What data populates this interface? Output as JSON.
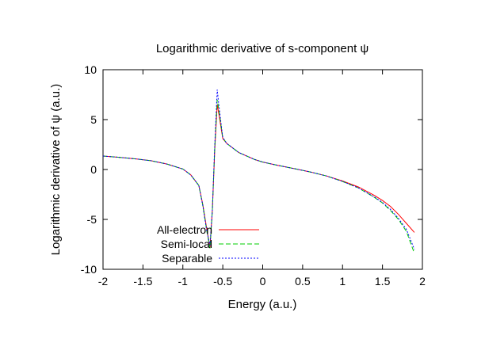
{
  "chart_data": {
    "type": "line",
    "title": "Logarithmic derivative of s-component ψ",
    "xlabel": "Energy (a.u.)",
    "ylabel": "Logarithmic derivative of ψ (a.u.)",
    "xlim": [
      -2,
      2
    ],
    "ylim": [
      -10,
      10
    ],
    "xticks": [
      -2,
      -1.5,
      -1,
      -0.5,
      0,
      0.5,
      1,
      1.5,
      2
    ],
    "yticks": [
      -10,
      -5,
      0,
      5,
      10
    ],
    "xtick_labels": [
      "-2",
      "-1.5",
      "-1",
      "-0.5",
      "0",
      "0.5",
      "1",
      "1.5",
      "2"
    ],
    "ytick_labels": [
      "-10",
      "-5",
      "0",
      "5",
      "10"
    ],
    "grid": false,
    "legend_position": "bottom-left",
    "series": [
      {
        "name": "All-electron",
        "color": "#ff0000",
        "dash": "solid",
        "points": [
          [
            -2.0,
            1.35
          ],
          [
            -1.8,
            1.22
          ],
          [
            -1.6,
            1.07
          ],
          [
            -1.4,
            0.88
          ],
          [
            -1.2,
            0.55
          ],
          [
            -1.0,
            0.05
          ],
          [
            -0.9,
            -0.55
          ],
          [
            -0.8,
            -1.6
          ],
          [
            -0.75,
            -3.5
          ],
          [
            -0.7,
            -6.0
          ],
          [
            -0.66,
            -7.8
          ],
          [
            -0.63,
            -4.0
          ],
          [
            -0.6,
            2.0
          ],
          [
            -0.57,
            6.5
          ],
          [
            -0.55,
            5.6
          ],
          [
            -0.5,
            3.1
          ],
          [
            -0.45,
            2.6
          ],
          [
            -0.3,
            1.7
          ],
          [
            -0.1,
            1.0
          ],
          [
            0.0,
            0.75
          ],
          [
            0.2,
            0.4
          ],
          [
            0.4,
            0.08
          ],
          [
            0.6,
            -0.25
          ],
          [
            0.8,
            -0.65
          ],
          [
            1.0,
            -1.15
          ],
          [
            1.2,
            -1.75
          ],
          [
            1.4,
            -2.6
          ],
          [
            1.5,
            -3.1
          ],
          [
            1.6,
            -3.7
          ],
          [
            1.7,
            -4.5
          ],
          [
            1.8,
            -5.4
          ],
          [
            1.9,
            -6.3
          ]
        ]
      },
      {
        "name": "Semi-local",
        "color": "#00cc00",
        "dash": "6 3",
        "points": [
          [
            -2.0,
            1.35
          ],
          [
            -1.8,
            1.22
          ],
          [
            -1.6,
            1.07
          ],
          [
            -1.4,
            0.88
          ],
          [
            -1.2,
            0.55
          ],
          [
            -1.0,
            0.05
          ],
          [
            -0.9,
            -0.55
          ],
          [
            -0.8,
            -1.6
          ],
          [
            -0.75,
            -3.6
          ],
          [
            -0.7,
            -6.2
          ],
          [
            -0.66,
            -7.9
          ],
          [
            -0.63,
            -4.0
          ],
          [
            -0.6,
            2.2
          ],
          [
            -0.57,
            7.0
          ],
          [
            -0.55,
            6.0
          ],
          [
            -0.5,
            3.2
          ],
          [
            -0.45,
            2.6
          ],
          [
            -0.3,
            1.7
          ],
          [
            -0.1,
            1.0
          ],
          [
            0.0,
            0.75
          ],
          [
            0.2,
            0.4
          ],
          [
            0.4,
            0.08
          ],
          [
            0.6,
            -0.25
          ],
          [
            0.8,
            -0.65
          ],
          [
            1.0,
            -1.2
          ],
          [
            1.2,
            -1.85
          ],
          [
            1.4,
            -2.8
          ],
          [
            1.5,
            -3.35
          ],
          [
            1.6,
            -4.1
          ],
          [
            1.7,
            -5.0
          ],
          [
            1.8,
            -6.2
          ],
          [
            1.9,
            -8.4
          ]
        ]
      },
      {
        "name": "Separable",
        "color": "#0000ff",
        "dash": "2 2",
        "points": [
          [
            -2.0,
            1.35
          ],
          [
            -1.8,
            1.22
          ],
          [
            -1.6,
            1.07
          ],
          [
            -1.4,
            0.88
          ],
          [
            -1.2,
            0.55
          ],
          [
            -1.0,
            0.05
          ],
          [
            -0.9,
            -0.55
          ],
          [
            -0.8,
            -1.6
          ],
          [
            -0.75,
            -3.6
          ],
          [
            -0.7,
            -6.2
          ],
          [
            -0.66,
            -7.6
          ],
          [
            -0.63,
            -4.0
          ],
          [
            -0.6,
            2.5
          ],
          [
            -0.57,
            8.0
          ],
          [
            -0.55,
            6.5
          ],
          [
            -0.5,
            3.2
          ],
          [
            -0.45,
            2.6
          ],
          [
            -0.3,
            1.7
          ],
          [
            -0.1,
            1.0
          ],
          [
            0.0,
            0.75
          ],
          [
            0.2,
            0.4
          ],
          [
            0.4,
            0.08
          ],
          [
            0.6,
            -0.25
          ],
          [
            0.8,
            -0.65
          ],
          [
            1.0,
            -1.2
          ],
          [
            1.2,
            -1.85
          ],
          [
            1.4,
            -2.75
          ],
          [
            1.5,
            -3.3
          ],
          [
            1.6,
            -4.0
          ],
          [
            1.7,
            -4.9
          ],
          [
            1.8,
            -6.0
          ],
          [
            1.9,
            -8.0
          ]
        ]
      }
    ]
  }
}
